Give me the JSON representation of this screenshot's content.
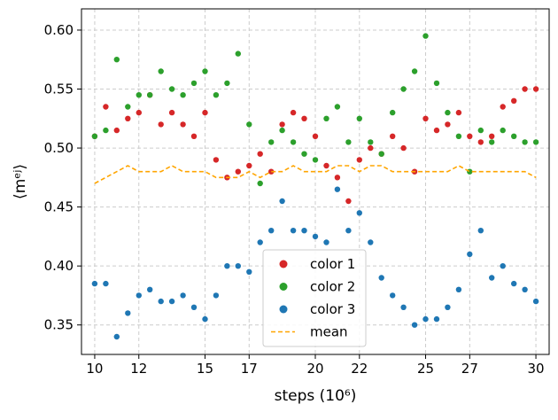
{
  "chart_data": {
    "type": "scatter",
    "xlabel": "steps (10⁶)",
    "ylabel": "⟨mᵉʲ⟩",
    "xlim": [
      9.4,
      30.6
    ],
    "ylim": [
      0.325,
      0.618
    ],
    "grid": true,
    "legend_position": "lower-center",
    "x_ticks": [
      10,
      12,
      15,
      17,
      20,
      22,
      25,
      27,
      30
    ],
    "x_tick_labels": [
      "10",
      "12",
      "15",
      "17",
      "20",
      "22",
      "25",
      "27",
      "30"
    ],
    "y_ticks": [
      0.35,
      0.4,
      0.45,
      0.5,
      0.55,
      0.6
    ],
    "y_tick_labels": [
      "0.35",
      "0.40",
      "0.45",
      "0.50",
      "0.55",
      "0.60"
    ],
    "x": [
      10.0,
      10.5,
      11.0,
      11.5,
      12.0,
      12.5,
      13.0,
      13.5,
      14.0,
      14.5,
      15.0,
      15.5,
      16.0,
      16.5,
      17.0,
      17.5,
      18.0,
      18.5,
      19.0,
      19.5,
      20.0,
      20.5,
      21.0,
      21.5,
      22.0,
      22.5,
      23.0,
      23.5,
      24.0,
      24.5,
      25.0,
      25.5,
      26.0,
      26.5,
      27.0,
      27.5,
      28.0,
      28.5,
      29.0,
      29.5,
      30.0
    ],
    "series": [
      {
        "name": "color 1",
        "style": "dots",
        "color": "#d62728",
        "values": [
          0.51,
          0.535,
          0.515,
          0.525,
          0.53,
          0.545,
          0.52,
          0.53,
          0.52,
          0.51,
          0.53,
          0.49,
          0.475,
          0.48,
          0.485,
          0.495,
          0.48,
          0.52,
          0.53,
          0.525,
          0.51,
          0.485,
          0.475,
          0.455,
          0.49,
          0.5,
          0.495,
          0.51,
          0.5,
          0.48,
          0.525,
          0.515,
          0.52,
          0.53,
          0.51,
          0.505,
          0.51,
          0.535,
          0.54,
          0.55,
          0.55
        ]
      },
      {
        "name": "color 2",
        "style": "dots",
        "color": "#2ca02c",
        "values": [
          0.51,
          0.515,
          0.575,
          0.535,
          0.545,
          0.545,
          0.565,
          0.55,
          0.545,
          0.555,
          0.565,
          0.545,
          0.555,
          0.58,
          0.52,
          0.47,
          0.505,
          0.515,
          0.505,
          0.495,
          0.49,
          0.525,
          0.535,
          0.505,
          0.525,
          0.505,
          0.495,
          0.53,
          0.55,
          0.565,
          0.595,
          0.555,
          0.53,
          0.51,
          0.48,
          0.515,
          0.505,
          0.515,
          0.51,
          0.505,
          0.505
        ]
      },
      {
        "name": "color 3",
        "style": "dots",
        "color": "#1f77b4",
        "values": [
          0.385,
          0.385,
          0.34,
          0.36,
          0.375,
          0.38,
          0.37,
          0.37,
          0.375,
          0.365,
          0.355,
          0.375,
          0.4,
          0.4,
          0.395,
          0.42,
          0.43,
          0.455,
          0.43,
          0.43,
          0.425,
          0.42,
          0.465,
          0.43,
          0.445,
          0.42,
          0.39,
          0.375,
          0.365,
          0.35,
          0.355,
          0.355,
          0.365,
          0.38,
          0.41,
          0.43,
          0.39,
          0.4,
          0.385,
          0.38,
          0.37
        ]
      },
      {
        "name": "mean",
        "style": "dashed-line",
        "color": "#ffa500",
        "values": [
          0.47,
          0.475,
          0.48,
          0.485,
          0.48,
          0.48,
          0.48,
          0.485,
          0.48,
          0.48,
          0.48,
          0.475,
          0.475,
          0.475,
          0.48,
          0.475,
          0.48,
          0.48,
          0.485,
          0.48,
          0.48,
          0.48,
          0.485,
          0.485,
          0.48,
          0.485,
          0.485,
          0.48,
          0.48,
          0.48,
          0.48,
          0.48,
          0.48,
          0.485,
          0.48,
          0.48,
          0.48,
          0.48,
          0.48,
          0.48,
          0.475
        ]
      }
    ]
  }
}
